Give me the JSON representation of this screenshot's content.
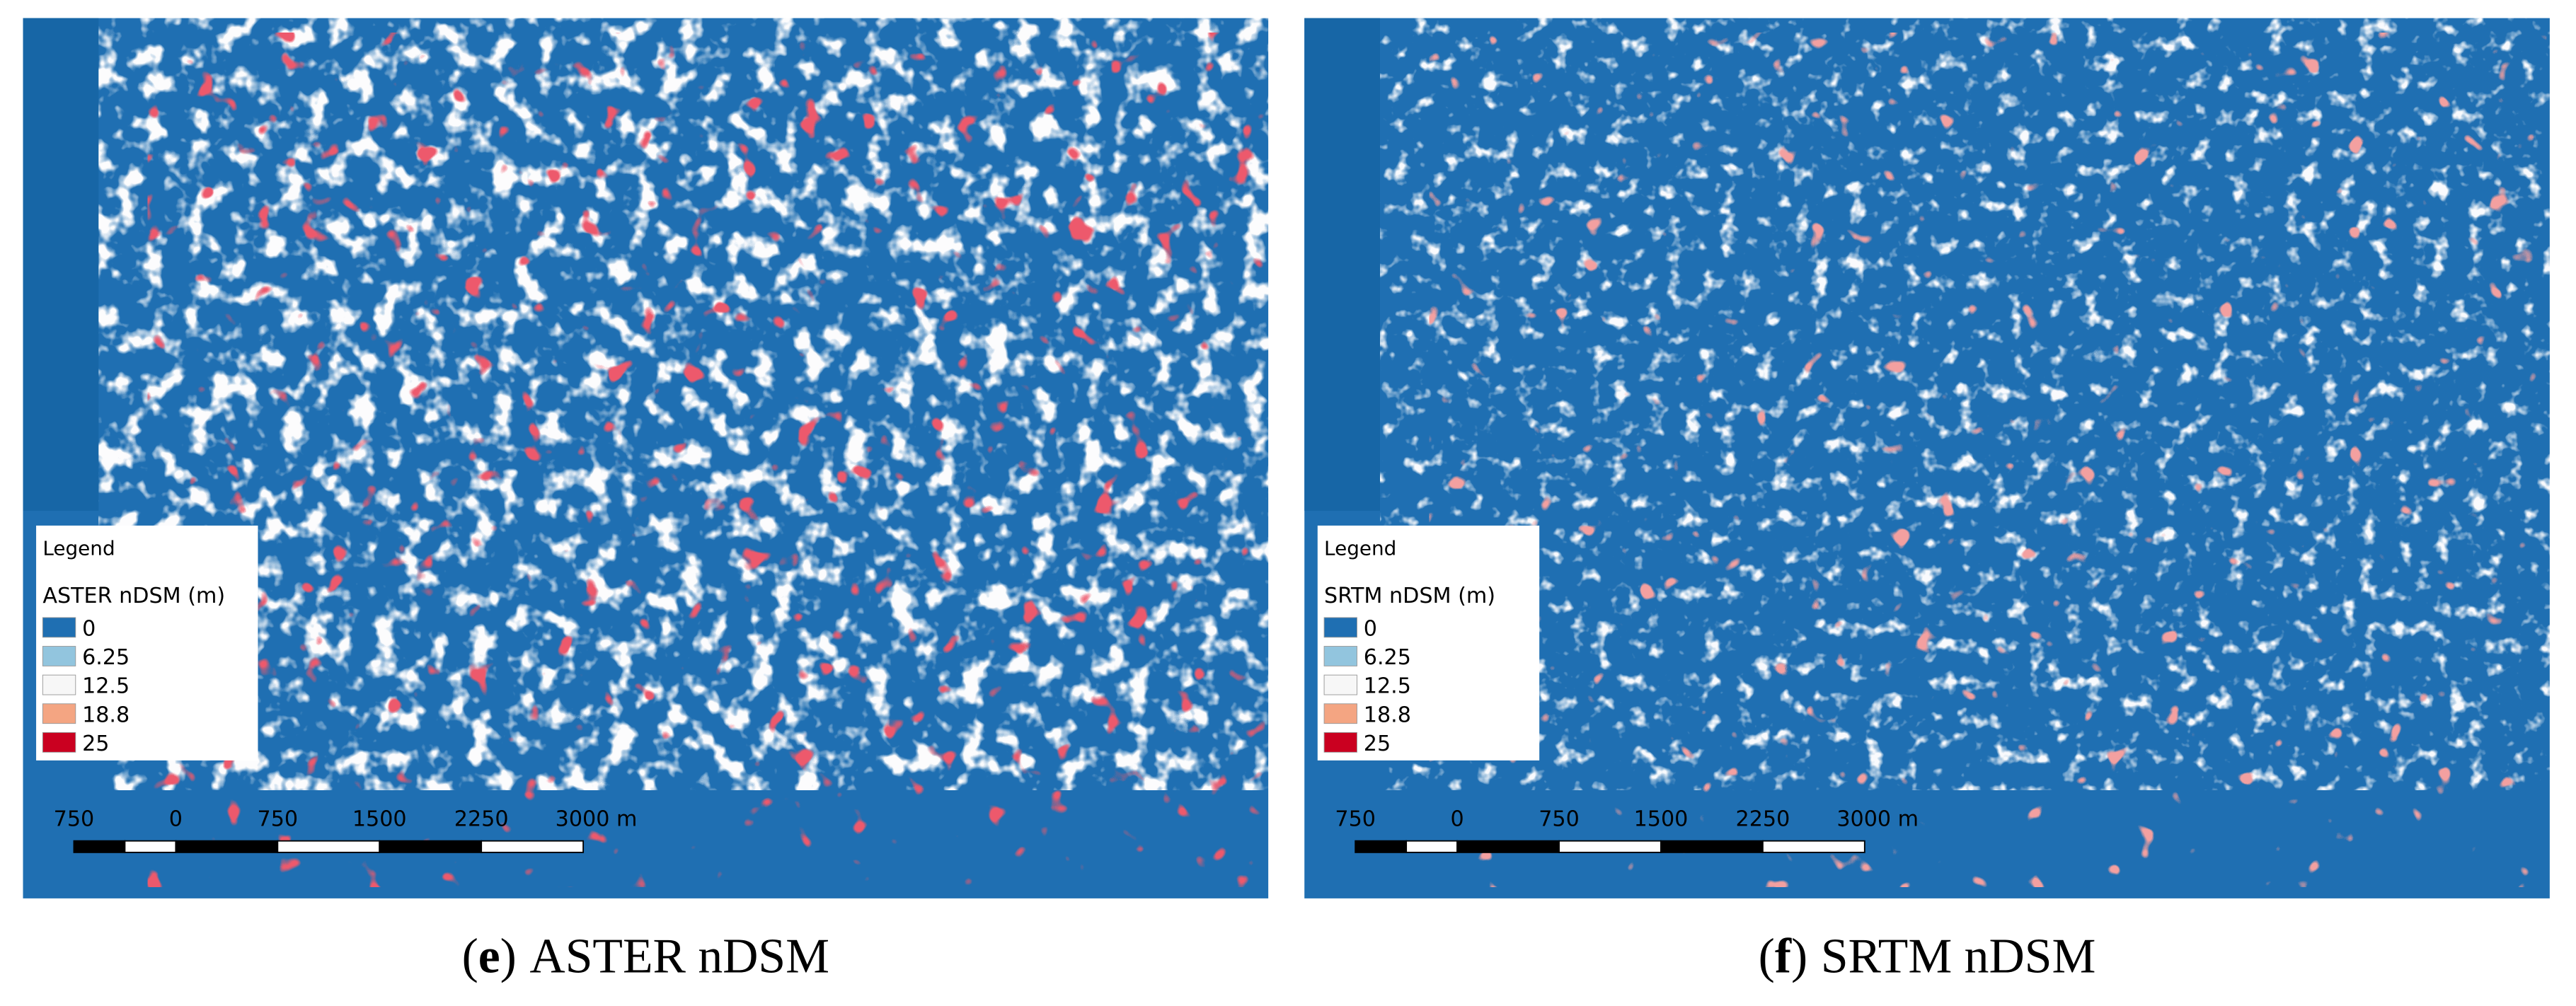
{
  "panels": [
    {
      "caption": {
        "open": "(",
        "label": "e",
        "close": ")",
        "text": "ASTER nDSM"
      },
      "legend": {
        "heading": "Legend",
        "title": "ASTER nDSM (m)",
        "entries": [
          {
            "label": "0",
            "color": "#1f6fb2"
          },
          {
            "label": "6.25",
            "color": "#92c5de"
          },
          {
            "label": "12.5",
            "color": "#f7f7f7"
          },
          {
            "label": "18.8",
            "color": "#f4a582"
          },
          {
            "label": "25",
            "color": "#ca0020"
          }
        ]
      },
      "scale_bar": {
        "labels": [
          "750",
          "0",
          "750",
          "1500",
          "2250",
          "3000 m"
        ]
      }
    },
    {
      "caption": {
        "open": "(",
        "label": "f",
        "close": ")",
        "text": "SRTM nDSM"
      },
      "legend": {
        "heading": "Legend",
        "title": "SRTM nDSM (m)",
        "entries": [
          {
            "label": "0",
            "color": "#1f6fb2"
          },
          {
            "label": "6.25",
            "color": "#92c5de"
          },
          {
            "label": "12.5",
            "color": "#f7f7f7"
          },
          {
            "label": "18.8",
            "color": "#f4a582"
          },
          {
            "label": "25",
            "color": "#ca0020"
          }
        ]
      },
      "scale_bar": {
        "labels": [
          "750",
          "0",
          "750",
          "1500",
          "2250",
          "3000 m"
        ]
      }
    }
  ]
}
